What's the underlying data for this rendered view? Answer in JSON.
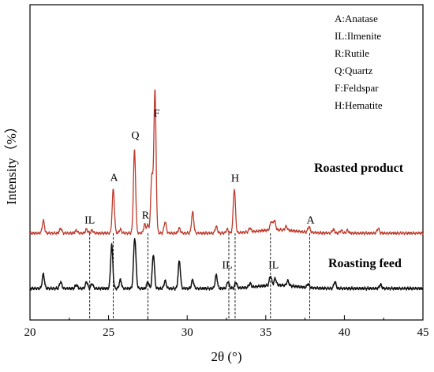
{
  "chart_data": {
    "type": "line",
    "title": "",
    "xlabel": "2θ (°)",
    "ylabel": "Intensity（%）",
    "xlim": [
      20,
      45
    ],
    "xticks": [
      20,
      25,
      30,
      35,
      40,
      45
    ],
    "yticks_shown": false,
    "grid": false,
    "legend": {
      "placement": "top-right",
      "entries": [
        "A:Anatase",
        "IL:Ilmenite",
        "R:Rutile",
        "Q:Quartz",
        "F:Feldspar",
        "H:Hematite"
      ]
    },
    "series": [
      {
        "name": "Roasted product",
        "color": "#c0392b",
        "baseline": 58,
        "peaks": [
          [
            20.85,
            13
          ],
          [
            21.95,
            5
          ],
          [
            22.95,
            3
          ],
          [
            23.6,
            4
          ],
          [
            23.95,
            3
          ],
          [
            25.3,
            46
          ],
          [
            25.75,
            4
          ],
          [
            26.65,
            87
          ],
          [
            27.3,
            9
          ],
          [
            27.5,
            8
          ],
          [
            27.75,
            60
          ],
          [
            27.95,
            150
          ],
          [
            28.6,
            12
          ],
          [
            29.5,
            5
          ],
          [
            30.35,
            22
          ],
          [
            31.85,
            7
          ],
          [
            32.55,
            4
          ],
          [
            33.0,
            46
          ],
          [
            34.0,
            4
          ],
          [
            35.35,
            9
          ],
          [
            35.55,
            10
          ],
          [
            36.3,
            4
          ],
          [
            37.75,
            6
          ],
          [
            39.3,
            4
          ],
          [
            39.8,
            3
          ],
          [
            40.2,
            3
          ],
          [
            42.15,
            5
          ]
        ]
      },
      {
        "name": "Roasting feed",
        "color": "#111111",
        "baseline": 0,
        "peaks": [
          [
            20.85,
            15
          ],
          [
            21.95,
            7
          ],
          [
            22.95,
            4
          ],
          [
            23.6,
            7
          ],
          [
            23.95,
            5
          ],
          [
            25.2,
            46
          ],
          [
            25.75,
            9
          ],
          [
            26.65,
            43
          ],
          [
            26.72,
            15
          ],
          [
            27.5,
            7
          ],
          [
            27.85,
            36
          ],
          [
            28.6,
            8
          ],
          [
            29.5,
            29
          ],
          [
            30.35,
            9
          ],
          [
            31.85,
            14
          ],
          [
            32.6,
            7
          ],
          [
            33.1,
            6
          ],
          [
            34.0,
            4
          ],
          [
            35.3,
            10
          ],
          [
            35.6,
            7
          ],
          [
            36.4,
            5
          ],
          [
            37.7,
            4
          ],
          [
            39.4,
            7
          ],
          [
            42.3,
            4
          ]
        ]
      }
    ],
    "series_labels": [
      "Roasted product",
      "Roasting feed"
    ],
    "peak_labels": [
      {
        "text": "F",
        "x": 28.05,
        "y": 180
      },
      {
        "text": "Q",
        "x": 26.7,
        "y": 157
      },
      {
        "text": "A",
        "x": 25.35,
        "y": 113
      },
      {
        "text": "H",
        "x": 33.05,
        "y": 112
      },
      {
        "text": "R",
        "x": 27.35,
        "y": 73
      },
      {
        "text": "IL",
        "x": 23.8,
        "y": 68
      },
      {
        "text": "A",
        "x": 37.85,
        "y": 68
      },
      {
        "text": "IL",
        "x": 32.55,
        "y": 21
      },
      {
        "text": "IL",
        "x": 35.5,
        "y": 21
      }
    ],
    "reference_lines_x": [
      23.8,
      25.3,
      27.5,
      32.65,
      33.05,
      35.3,
      37.8
    ],
    "reference_lines_y_top": 58
  }
}
